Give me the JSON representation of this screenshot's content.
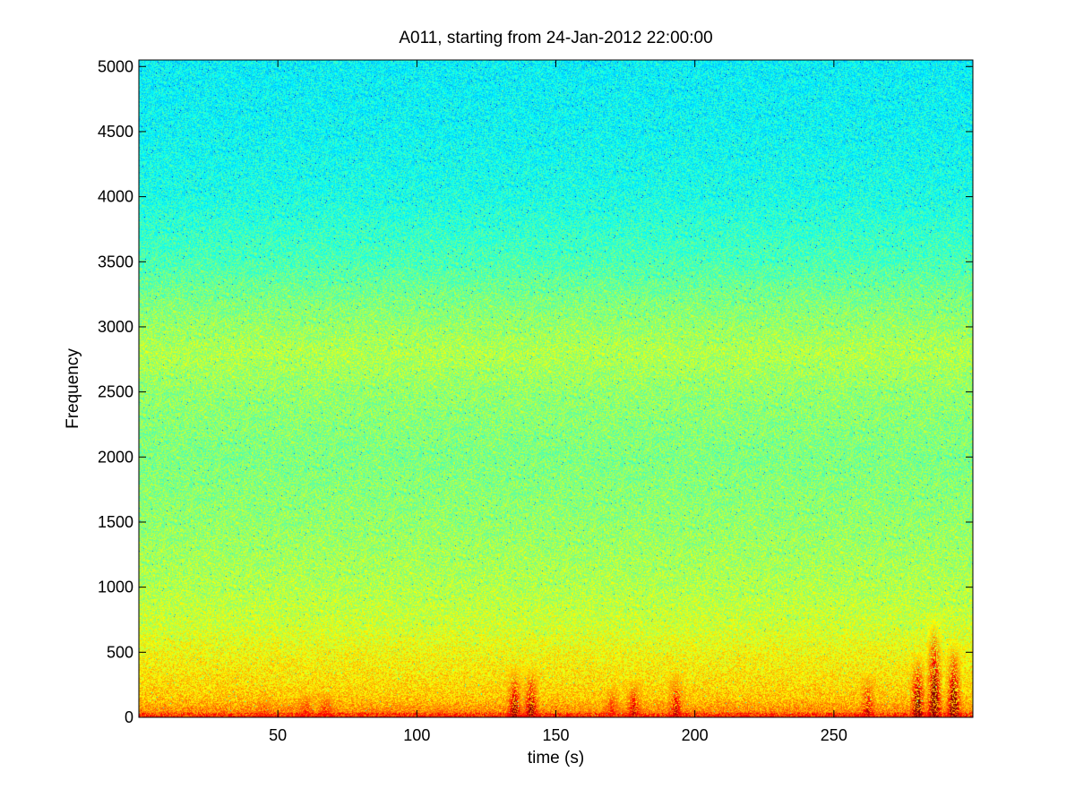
{
  "chart_data": {
    "type": "heatmap",
    "title": "A011, starting from 24-Jan-2012 22:00:00",
    "xlabel": "time (s)",
    "ylabel": "Frequency",
    "xlim": [
      0,
      300
    ],
    "ylim": [
      0,
      5050
    ],
    "xticks": [
      50,
      100,
      150,
      200,
      250
    ],
    "yticks": [
      0,
      500,
      1000,
      1500,
      2000,
      2500,
      3000,
      3500,
      4000,
      4500,
      5000
    ],
    "colormap": "jet",
    "grid": false,
    "legend": "none",
    "intensity_profile": {
      "description_units": "relative level 0-1 on jet colormap",
      "frequency": [
        0,
        50,
        150,
        300,
        500,
        700,
        1000,
        1500,
        2000,
        2500,
        2800,
        3200,
        3500,
        4000,
        4500,
        5050
      ],
      "level": [
        0.82,
        0.74,
        0.68,
        0.65,
        0.62,
        0.58,
        0.55,
        0.52,
        0.5,
        0.52,
        0.55,
        0.5,
        0.45,
        0.4,
        0.38,
        0.37
      ]
    },
    "bursts": [
      {
        "time": 45,
        "max_freq": 150,
        "strength": 0.85
      },
      {
        "time": 60,
        "max_freq": 200,
        "strength": 0.85
      },
      {
        "time": 67,
        "max_freq": 200,
        "strength": 0.85
      },
      {
        "time": 108,
        "max_freq": 100,
        "strength": 0.8
      },
      {
        "time": 135,
        "max_freq": 400,
        "strength": 0.95
      },
      {
        "time": 141,
        "max_freq": 400,
        "strength": 0.95
      },
      {
        "time": 170,
        "max_freq": 250,
        "strength": 0.85
      },
      {
        "time": 178,
        "max_freq": 300,
        "strength": 0.9
      },
      {
        "time": 193,
        "max_freq": 350,
        "strength": 0.9
      },
      {
        "time": 262,
        "max_freq": 350,
        "strength": 0.9
      },
      {
        "time": 280,
        "max_freq": 500,
        "strength": 1.0
      },
      {
        "time": 286,
        "max_freq": 800,
        "strength": 1.0
      },
      {
        "time": 293,
        "max_freq": 600,
        "strength": 1.0
      }
    ]
  }
}
